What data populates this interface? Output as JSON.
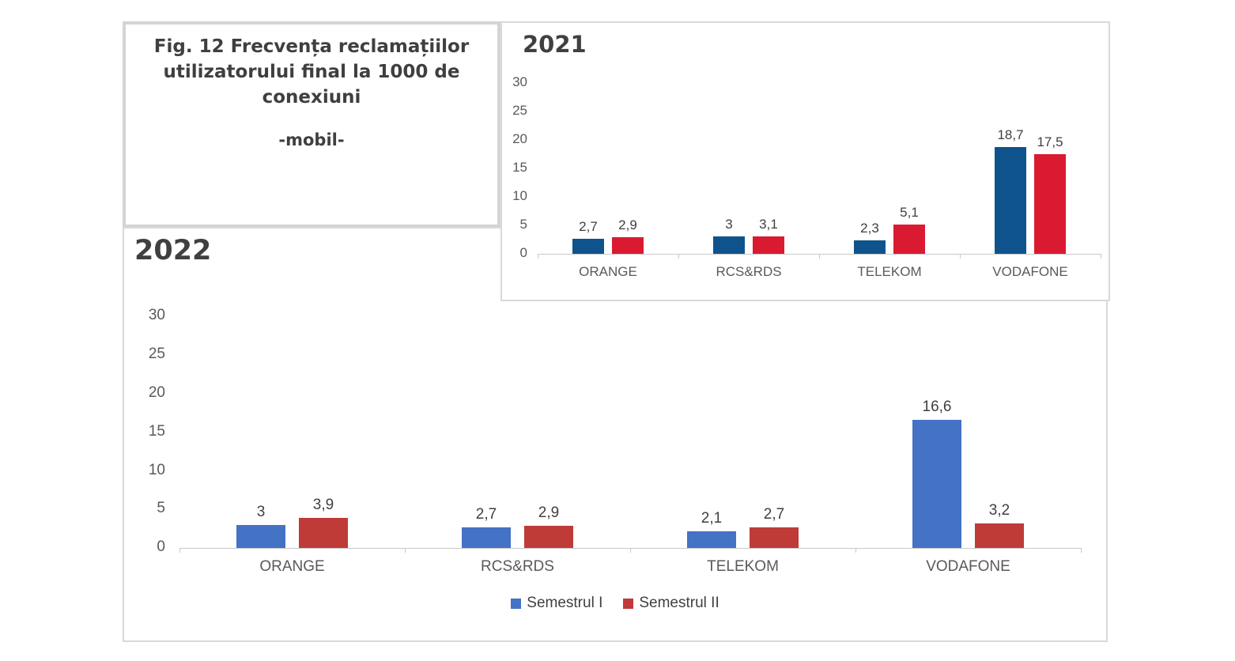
{
  "figure": {
    "title": "Fig. 12 Frecvența reclamațiilor utilizatorului final la 1000 de conexiuni",
    "subtitle": "-mobil-"
  },
  "legend": {
    "items": [
      {
        "label": "Semestrul I",
        "color": "#4472c4"
      },
      {
        "label": "Semestrul II",
        "color": "#be3b38"
      }
    ]
  },
  "colors": {
    "blue_2021": "#0f538c",
    "red_2021": "#da1a31",
    "blue_2022": "#4472c4",
    "red_2022": "#be3b38",
    "border_gray": "#d9d9d9",
    "axis_gray": "#c9c9c9",
    "text_dark": "#404040",
    "text_axis": "#595959"
  },
  "chart_data": [
    {
      "type": "bar",
      "title": "2021",
      "categories": [
        "ORANGE",
        "RCS&RDS",
        "TELEKOM",
        "VODAFONE"
      ],
      "series": [
        {
          "name": "Semestrul I",
          "color": "#0f538c",
          "values": [
            2.7,
            3,
            2.3,
            18.7
          ],
          "labels": [
            "2,7",
            "3",
            "2,3",
            "18,7"
          ]
        },
        {
          "name": "Semestrul II",
          "color": "#da1a31",
          "values": [
            2.9,
            3.1,
            5.1,
            17.5
          ],
          "labels": [
            "2,9",
            "3,1",
            "5,1",
            "17,5"
          ]
        }
      ],
      "xlabel": "",
      "ylabel": "",
      "ylim": [
        0,
        30
      ],
      "yticks": [
        0,
        5,
        10,
        15,
        20,
        25,
        30
      ],
      "grid": false,
      "legend_position": "none"
    },
    {
      "type": "bar",
      "title": "2022",
      "categories": [
        "ORANGE",
        "RCS&RDS",
        "TELEKOM",
        "VODAFONE"
      ],
      "series": [
        {
          "name": "Semestrul I",
          "color": "#4472c4",
          "values": [
            3,
            2.7,
            2.1,
            16.6
          ],
          "labels": [
            "3",
            "2,7",
            "2,1",
            "16,6"
          ]
        },
        {
          "name": "Semestrul II",
          "color": "#be3b38",
          "values": [
            3.9,
            2.9,
            2.7,
            3.2
          ],
          "labels": [
            "3,9",
            "2,9",
            "2,7",
            "3,2"
          ]
        }
      ],
      "xlabel": "",
      "ylabel": "",
      "ylim": [
        0,
        30
      ],
      "yticks": [
        0,
        5,
        10,
        15,
        20,
        25,
        30
      ],
      "grid": false,
      "legend_position": "bottom"
    }
  ]
}
